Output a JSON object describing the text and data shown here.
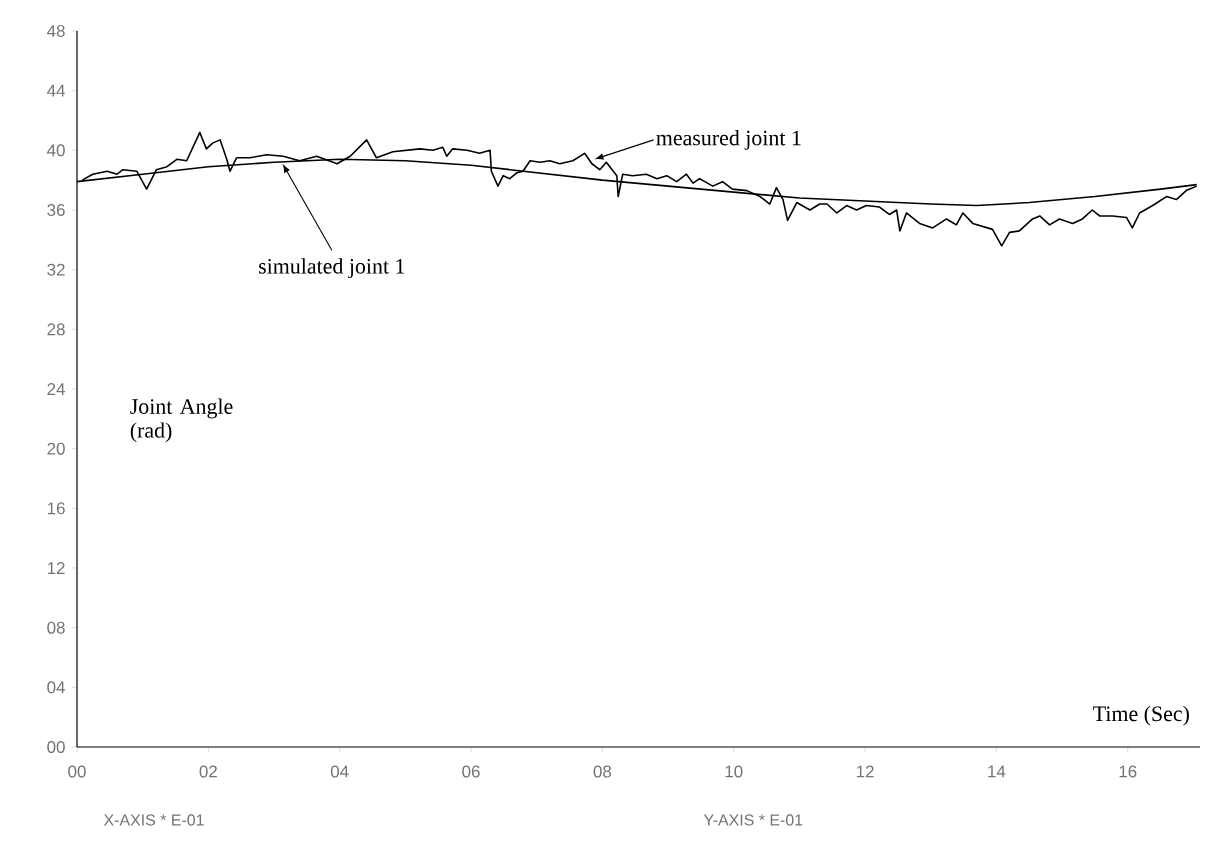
{
  "chart_data": {
    "type": "line",
    "xlabel": "Time (Sec)",
    "ylabel": "Joint Angle (rad)",
    "xlim": [
      0,
      17.1
    ],
    "ylim": [
      0,
      48
    ],
    "xticks": [
      {
        "value": 0,
        "label": "00"
      },
      {
        "value": 2,
        "label": "02"
      },
      {
        "value": 4,
        "label": "04"
      },
      {
        "value": 6,
        "label": "06"
      },
      {
        "value": 8,
        "label": "08"
      },
      {
        "value": 10,
        "label": "10"
      },
      {
        "value": 12,
        "label": "12"
      },
      {
        "value": 14,
        "label": "14"
      },
      {
        "value": 16,
        "label": "16"
      }
    ],
    "yticks": [
      {
        "value": 0,
        "label": "00"
      },
      {
        "value": 4,
        "label": "04"
      },
      {
        "value": 8,
        "label": "08"
      },
      12,
      16,
      20,
      24,
      28,
      32,
      36,
      40,
      44,
      48
    ],
    "grid": false,
    "marker": "none",
    "line_style": "solid",
    "series": [
      {
        "color": "#000000",
        "x": [
          0.08,
          0.24,
          0.46,
          0.61,
          0.7,
          0.91,
          1.06,
          1.21,
          1.37,
          1.52,
          1.67,
          1.87,
          1.97,
          2.07,
          2.18,
          2.28,
          2.33,
          2.43,
          2.63,
          2.89,
          3.14,
          3.39,
          3.65,
          3.96,
          4.16,
          4.41,
          4.56,
          4.81,
          5.22,
          5.42,
          5.57,
          5.63,
          5.72,
          5.94,
          6.13,
          6.29,
          6.31,
          6.41,
          6.49,
          6.59,
          6.7,
          6.79,
          6.9,
          7.05,
          7.2,
          7.35,
          7.55,
          7.73,
          7.84,
          7.96,
          8.06,
          8.22,
          8.24,
          8.31,
          8.46,
          8.67,
          8.83,
          8.98,
          9.13,
          9.28,
          9.38,
          9.48,
          9.68,
          9.83,
          9.98,
          10.2,
          10.4,
          10.55,
          10.65,
          10.75,
          10.82,
          10.96,
          11.16,
          11.31,
          11.42,
          11.57,
          11.72,
          11.87,
          12.02,
          12.22,
          12.37,
          12.48,
          12.53,
          12.63,
          12.83,
          13.03,
          13.24,
          13.39,
          13.49,
          13.64,
          13.79,
          13.94,
          14.08,
          14.2,
          14.35,
          14.55,
          14.66,
          14.81,
          14.96,
          15.16,
          15.31,
          15.46,
          15.57,
          15.77,
          15.98,
          16.07,
          16.18,
          16.38,
          16.59,
          16.74,
          16.89,
          17.05
        ],
        "values": [
          38.0,
          38.4,
          38.6,
          38.4,
          38.7,
          38.6,
          37.4,
          38.7,
          38.9,
          39.4,
          39.3,
          41.2,
          40.1,
          40.5,
          40.7,
          39.4,
          38.6,
          39.5,
          39.5,
          39.7,
          39.6,
          39.3,
          39.6,
          39.1,
          39.6,
          40.7,
          39.5,
          39.9,
          40.1,
          40.0,
          40.2,
          39.6,
          40.1,
          40.0,
          39.8,
          40.0,
          38.6,
          37.6,
          38.3,
          38.1,
          38.5,
          38.6,
          39.3,
          39.2,
          39.3,
          39.1,
          39.3,
          39.8,
          39.1,
          38.7,
          39.2,
          38.3,
          36.9,
          38.4,
          38.3,
          38.4,
          38.1,
          38.3,
          37.9,
          38.4,
          37.8,
          38.1,
          37.6,
          37.9,
          37.4,
          37.3,
          36.9,
          36.4,
          37.5,
          36.7,
          35.3,
          36.5,
          36.0,
          36.4,
          36.4,
          35.8,
          36.3,
          36.0,
          36.3,
          36.2,
          35.7,
          36.0,
          34.6,
          35.8,
          35.1,
          34.8,
          35.4,
          35.0,
          35.8,
          35.1,
          34.9,
          34.7,
          33.6,
          34.5,
          34.6,
          35.4,
          35.6,
          35.0,
          35.4,
          35.1,
          35.4,
          36.0,
          35.6,
          35.6,
          35.5,
          34.8,
          35.8,
          36.3,
          36.9,
          36.7,
          37.3,
          37.6
        ]
      },
      {
        "color": "#000000",
        "x": [
          0,
          1,
          2,
          3,
          4,
          5,
          6,
          7,
          8,
          9,
          10,
          11,
          12,
          13,
          13.7,
          14.5,
          15.5,
          16.5,
          17.05
        ],
        "values": [
          37.9,
          38.4,
          38.9,
          39.2,
          39.4,
          39.3,
          39.0,
          38.5,
          38.0,
          37.6,
          37.2,
          36.8,
          36.6,
          36.4,
          36.3,
          36.5,
          36.9,
          37.4,
          37.7
        ]
      }
    ],
    "annotations": [
      {
        "text": "measured joint 1",
        "x": 7.88,
        "y": 39.4
      },
      {
        "text": "simulated joint 1",
        "x": 3.13,
        "y": 39.1
      },
      "X-AXIS * E-01",
      "Y-AXIS * E-01"
    ]
  }
}
